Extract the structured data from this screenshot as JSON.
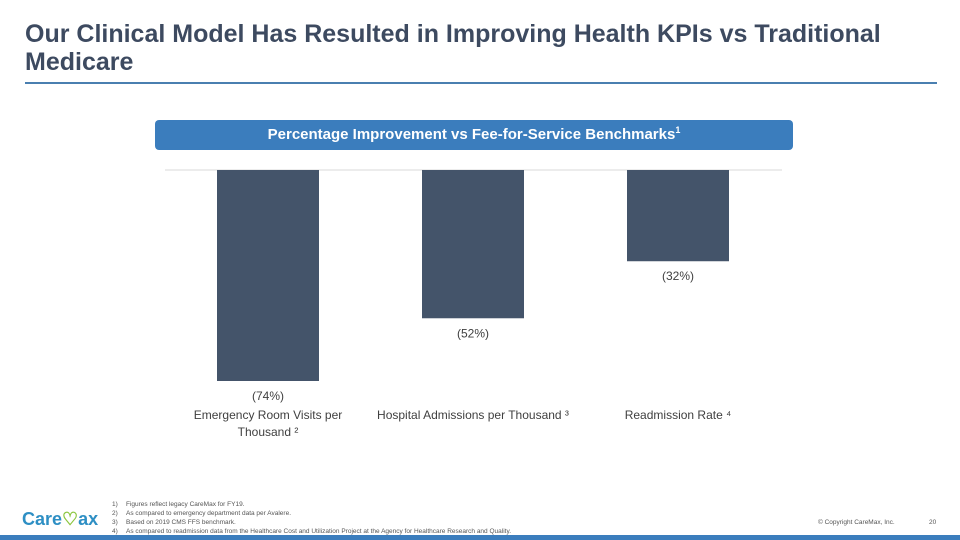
{
  "title": "Our Clinical Model Has Resulted in Improving Health KPIs vs Traditional Medicare",
  "banner": {
    "text": "Percentage Improvement vs Fee-for-Service Benchmarks",
    "sup": "1"
  },
  "chart_data": {
    "type": "bar",
    "title": "Percentage Improvement vs Fee-for-Service Benchmarks",
    "categories": [
      "Emergency Room Visits per Thousand ²",
      "Hospital Admissions per Thousand ³",
      "Readmission Rate ⁴"
    ],
    "values": [
      -74,
      -52,
      -32
    ],
    "data_labels": [
      "(74%)",
      "(52%)",
      "(32%)"
    ],
    "ylim": [
      -74,
      0
    ],
    "color": "#44546a",
    "grid": false
  },
  "footnotes": [
    {
      "n": "1)",
      "text": "Figures reflect legacy CareMax for FY19."
    },
    {
      "n": "2)",
      "text": "As compared to emergency department data per Avalere."
    },
    {
      "n": "3)",
      "text": "Based on 2019 CMS FFS benchmark."
    },
    {
      "n": "4)",
      "text": "As compared to readmission data from the Healthcare Cost and Utilization Project at the Agency for Healthcare Research and Quality."
    }
  ],
  "logo": "CareMax",
  "copyright": "© Copyright CareMax, Inc.",
  "page_number": "20"
}
